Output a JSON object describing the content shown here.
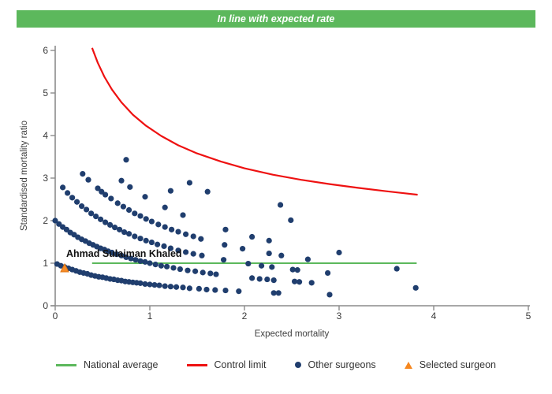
{
  "banner": {
    "text": "In line with expected rate",
    "bg_color": "#5cb85c",
    "text_color": "#ffffff"
  },
  "surgeon_label": "Ahmad Sulaiman Khaled",
  "legend": {
    "items": [
      {
        "label": "National average",
        "swatch": "line",
        "color": "#5cb85c"
      },
      {
        "label": "Control limit",
        "swatch": "line",
        "color": "#ee1111"
      },
      {
        "label": "Other surgeons",
        "swatch": "dot",
        "color": "#203e6e"
      },
      {
        "label": "Selected surgeon",
        "swatch": "triangle",
        "color": "#f6871f"
      }
    ]
  },
  "chart_data": {
    "type": "scatter",
    "title": "",
    "xlabel": "Expected mortality",
    "ylabel": "Standardised mortality ratio",
    "xlim": [
      0,
      5
    ],
    "ylim": [
      0,
      6
    ],
    "x_ticks": [
      0,
      1,
      2,
      3,
      4,
      5
    ],
    "y_ticks": [
      0,
      1,
      2,
      3,
      4,
      5,
      6
    ],
    "grid": false,
    "legend_position": "bottom",
    "colors": {
      "points": "#203e6e",
      "control_limit": "#ee1111",
      "national_average": "#5cb85c",
      "selected": "#f68c28",
      "selected_border": "#e07613",
      "axis": "#8c8c8c",
      "tick_text": "#3a3a3a"
    },
    "national_average": {
      "label": "National average",
      "y": 1,
      "x_start": 0.39,
      "x_end": 3.82
    },
    "control_limit": {
      "label": "Control limit",
      "points": [
        [
          0.39,
          6.06
        ],
        [
          0.45,
          5.71
        ],
        [
          0.52,
          5.38
        ],
        [
          0.6,
          5.08
        ],
        [
          0.7,
          4.78
        ],
        [
          0.82,
          4.49
        ],
        [
          0.96,
          4.23
        ],
        [
          1.12,
          3.99
        ],
        [
          1.3,
          3.77
        ],
        [
          1.5,
          3.58
        ],
        [
          1.75,
          3.39
        ],
        [
          2.0,
          3.23
        ],
        [
          2.3,
          3.08
        ],
        [
          2.6,
          2.96
        ],
        [
          2.9,
          2.86
        ],
        [
          3.2,
          2.77
        ],
        [
          3.5,
          2.69
        ],
        [
          3.83,
          2.61
        ]
      ]
    },
    "selected_surgeon": {
      "label": "Selected surgeon",
      "name": "Ahmad Sulaiman Khaled",
      "x": 0.1,
      "y": 0.88
    },
    "other_surgeons": {
      "label": "Other surgeons",
      "points": [
        [
          0.02,
          0.98
        ],
        [
          0.06,
          0.94
        ],
        [
          0.1,
          0.91
        ],
        [
          0.14,
          0.88
        ],
        [
          0.18,
          0.85
        ],
        [
          0.22,
          0.82
        ],
        [
          0.26,
          0.79
        ],
        [
          0.3,
          0.77
        ],
        [
          0.34,
          0.75
        ],
        [
          0.38,
          0.72
        ],
        [
          0.42,
          0.7
        ],
        [
          0.46,
          0.68
        ],
        [
          0.5,
          0.67
        ],
        [
          0.54,
          0.65
        ],
        [
          0.58,
          0.63
        ],
        [
          0.62,
          0.62
        ],
        [
          0.66,
          0.6
        ],
        [
          0.7,
          0.59
        ],
        [
          0.74,
          0.57
        ],
        [
          0.78,
          0.56
        ],
        [
          0.82,
          0.55
        ],
        [
          0.86,
          0.54
        ],
        [
          0.9,
          0.53
        ],
        [
          0.95,
          0.51
        ],
        [
          1.0,
          0.5
        ],
        [
          1.05,
          0.49
        ],
        [
          1.1,
          0.48
        ],
        [
          1.16,
          0.46
        ],
        [
          1.22,
          0.45
        ],
        [
          1.28,
          0.44
        ],
        [
          1.35,
          0.43
        ],
        [
          1.42,
          0.41
        ],
        [
          1.52,
          0.4
        ],
        [
          1.6,
          0.38
        ],
        [
          1.69,
          0.37
        ],
        [
          1.8,
          0.36
        ],
        [
          1.94,
          0.34
        ],
        [
          2.31,
          0.3
        ],
        [
          2.36,
          0.3
        ],
        [
          2.9,
          0.26
        ],
        [
          0.0,
          2.0
        ],
        [
          0.04,
          1.92
        ],
        [
          0.08,
          1.85
        ],
        [
          0.12,
          1.79
        ],
        [
          0.16,
          1.72
        ],
        [
          0.2,
          1.67
        ],
        [
          0.24,
          1.61
        ],
        [
          0.28,
          1.56
        ],
        [
          0.32,
          1.52
        ],
        [
          0.36,
          1.47
        ],
        [
          0.4,
          1.43
        ],
        [
          0.44,
          1.39
        ],
        [
          0.48,
          1.35
        ],
        [
          0.52,
          1.32
        ],
        [
          0.56,
          1.28
        ],
        [
          0.6,
          1.25
        ],
        [
          0.65,
          1.21
        ],
        [
          0.7,
          1.18
        ],
        [
          0.75,
          1.14
        ],
        [
          0.8,
          1.11
        ],
        [
          0.85,
          1.08
        ],
        [
          0.9,
          1.05
        ],
        [
          0.95,
          1.03
        ],
        [
          1.0,
          1.0
        ],
        [
          1.06,
          0.97
        ],
        [
          1.12,
          0.94
        ],
        [
          1.18,
          0.92
        ],
        [
          1.25,
          0.89
        ],
        [
          1.32,
          0.86
        ],
        [
          1.4,
          0.83
        ],
        [
          1.48,
          0.81
        ],
        [
          1.56,
          0.78
        ],
        [
          1.64,
          0.76
        ],
        [
          1.7,
          0.74
        ],
        [
          2.08,
          0.65
        ],
        [
          2.16,
          0.63
        ],
        [
          2.24,
          0.62
        ],
        [
          2.31,
          0.6
        ],
        [
          2.53,
          0.57
        ],
        [
          2.58,
          0.56
        ],
        [
          2.71,
          0.54
        ],
        [
          3.81,
          0.42
        ],
        [
          0.08,
          2.78
        ],
        [
          0.13,
          2.65
        ],
        [
          0.18,
          2.54
        ],
        [
          0.23,
          2.44
        ],
        [
          0.28,
          2.34
        ],
        [
          0.33,
          2.26
        ],
        [
          0.38,
          2.17
        ],
        [
          0.43,
          2.1
        ],
        [
          0.48,
          2.03
        ],
        [
          0.53,
          1.96
        ],
        [
          0.58,
          1.9
        ],
        [
          0.63,
          1.84
        ],
        [
          0.68,
          1.79
        ],
        [
          0.73,
          1.73
        ],
        [
          0.78,
          1.69
        ],
        [
          0.84,
          1.63
        ],
        [
          0.9,
          1.58
        ],
        [
          0.96,
          1.53
        ],
        [
          1.02,
          1.49
        ],
        [
          1.08,
          1.44
        ],
        [
          1.15,
          1.4
        ],
        [
          1.22,
          1.35
        ],
        [
          1.3,
          1.3
        ],
        [
          1.38,
          1.26
        ],
        [
          1.46,
          1.22
        ],
        [
          1.55,
          1.18
        ],
        [
          1.78,
          1.08
        ],
        [
          2.04,
          0.99
        ],
        [
          2.18,
          0.94
        ],
        [
          2.29,
          0.91
        ],
        [
          2.51,
          0.85
        ],
        [
          2.56,
          0.84
        ],
        [
          2.88,
          0.77
        ],
        [
          0.29,
          3.1
        ],
        [
          0.35,
          2.96
        ],
        [
          0.45,
          2.76
        ],
        [
          0.49,
          2.68
        ],
        [
          0.53,
          2.61
        ],
        [
          0.59,
          2.52
        ],
        [
          0.66,
          2.41
        ],
        [
          0.72,
          2.33
        ],
        [
          0.78,
          2.25
        ],
        [
          0.84,
          2.17
        ],
        [
          0.9,
          2.11
        ],
        [
          0.96,
          2.04
        ],
        [
          1.02,
          1.98
        ],
        [
          1.09,
          1.91
        ],
        [
          1.16,
          1.85
        ],
        [
          1.23,
          1.79
        ],
        [
          1.3,
          1.74
        ],
        [
          1.38,
          1.68
        ],
        [
          1.46,
          1.63
        ],
        [
          1.54,
          1.57
        ],
        [
          1.79,
          1.43
        ],
        [
          1.98,
          1.34
        ],
        [
          2.26,
          1.23
        ],
        [
          2.39,
          1.18
        ],
        [
          2.67,
          1.09
        ],
        [
          3.61,
          0.87
        ],
        [
          0.7,
          2.94
        ],
        [
          0.79,
          2.79
        ],
        [
          0.95,
          2.56
        ],
        [
          1.16,
          2.31
        ],
        [
          1.35,
          2.13
        ],
        [
          1.8,
          1.79
        ],
        [
          2.08,
          1.62
        ],
        [
          2.26,
          1.53
        ],
        [
          3.0,
          1.25
        ],
        [
          0.75,
          3.43
        ],
        [
          1.22,
          2.7
        ],
        [
          1.42,
          2.89
        ],
        [
          1.61,
          2.68
        ],
        [
          2.49,
          2.01
        ],
        [
          2.38,
          2.37
        ]
      ]
    }
  }
}
